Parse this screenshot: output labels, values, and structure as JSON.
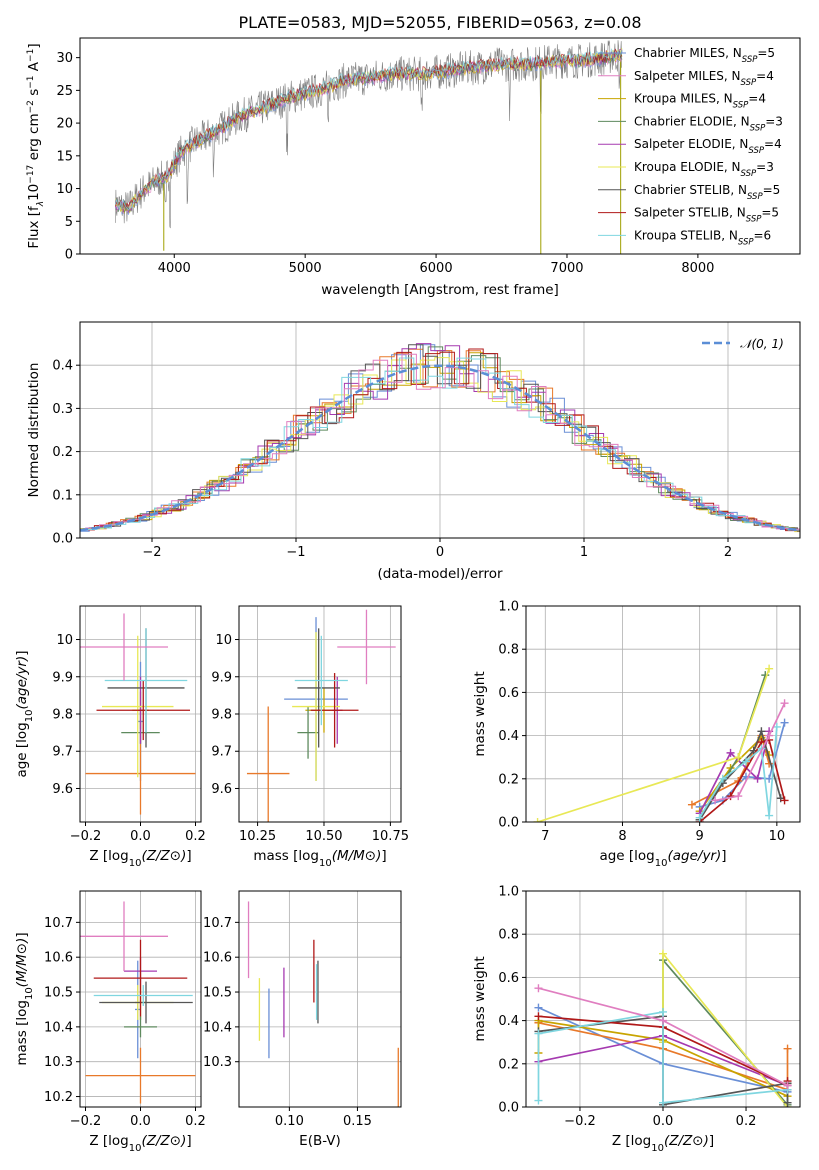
{
  "figure_title": "PLATE=0583, MJD=52055, FIBERID=0563, z=0.08",
  "colors": [
    "#6a8fd6",
    "#e8792a",
    "#c8a400",
    "#5e8a5e",
    "#a53ab0",
    "#e8e855",
    "#555555",
    "#b01818",
    "#7fd6e0",
    "#e07ec0"
  ],
  "chart_data": [
    {
      "id": "spectrum",
      "type": "line",
      "title": "PLATE=0583, MJD=52055, FIBERID=0563, z=0.08",
      "xlabel": "wavelength [Angstrom, rest frame]",
      "ylabel": "Flux [f_λ10^-17 erg cm^-2 s^-1 A^-1]",
      "xlim": [
        3280,
        8780
      ],
      "ylim": [
        0,
        33
      ],
      "xticks": [
        4000,
        5000,
        6000,
        7000,
        8000
      ],
      "yticks": [
        0,
        5,
        10,
        15,
        20,
        25,
        30
      ],
      "legend_position": "right",
      "continuum": {
        "x": [
          3550,
          3650,
          3750,
          3850,
          3950,
          4050,
          4150,
          4300,
          4500,
          4700,
          4900,
          5100,
          5300,
          5500,
          5700,
          5900,
          6100,
          6300,
          6500,
          6700,
          6900,
          7100,
          7300,
          7420
        ],
        "y": [
          7.5,
          7.0,
          9.5,
          11.0,
          12.0,
          15.5,
          17.0,
          18.5,
          21.0,
          22.5,
          24.0,
          25.0,
          26.5,
          27.0,
          27.5,
          27.5,
          28.0,
          28.5,
          29.0,
          29.0,
          29.5,
          29.5,
          30.0,
          30.5
        ]
      },
      "series": [
        {
          "name": "Chabrier MILES",
          "nssp": "5",
          "color": "#6a8fd6"
        },
        {
          "name": "Salpeter MILES",
          "nssp": "4",
          "color": "#e07ec0"
        },
        {
          "name": "Kroupa MILES",
          "nssp": "4",
          "color": "#c8a400"
        },
        {
          "name": "Chabrier ELODIE",
          "nssp": "3",
          "color": "#5e8a5e"
        },
        {
          "name": "Salpeter ELODIE",
          "nssp": "4",
          "color": "#a53ab0"
        },
        {
          "name": "Kroupa ELODIE",
          "nssp": "3",
          "color": "#e8e855"
        },
        {
          "name": "Chabrier STELIB",
          "nssp": "5",
          "color": "#555555"
        },
        {
          "name": "Salpeter STELIB",
          "nssp": "5",
          "color": "#b01818"
        },
        {
          "name": "Kroupa STELIB",
          "nssp": "6",
          "color": "#7fd6e0"
        }
      ]
    },
    {
      "id": "residuals",
      "type": "line",
      "xlabel": "(data-model)/error",
      "ylabel": "Normed distribution",
      "xlim": [
        -2.5,
        2.5
      ],
      "ylim": [
        0,
        0.5
      ],
      "xticks": [
        -2,
        -1,
        0,
        1,
        2
      ],
      "yticks": [
        0.0,
        0.1,
        0.2,
        0.3,
        0.4
      ],
      "ytick_labels": [
        "0.0",
        "0.1",
        "0.2",
        "0.3",
        "0.4"
      ],
      "legend_label": "𝒩(0, 1)",
      "legend_position": "top-right",
      "normal": {
        "mean": 0,
        "sigma": 1,
        "color": "#5b8ed6"
      }
    },
    {
      "id": "age-vs-Z",
      "type": "scatter",
      "xlabel": "Z [log10(Z/Z⊙)]",
      "ylabel": "age [log10(age/yr)]",
      "xlim": [
        -0.22,
        0.22
      ],
      "ylim": [
        9.51,
        10.09
      ],
      "xticks": [
        -0.2,
        0.0,
        0.2
      ],
      "xtick_labels": [
        "−0.2",
        "0.0",
        "0.2"
      ],
      "yticks": [
        9.6,
        9.7,
        9.8,
        9.9,
        10.0
      ],
      "points": [
        {
          "x": 0.0,
          "y": 9.78,
          "xerr": 0.01,
          "yerr": 0.16,
          "color": "#6a8fd6"
        },
        {
          "x": 0.0,
          "y": 9.64,
          "xerr": 0.2,
          "yerr": 0.11,
          "color": "#e8792a"
        },
        {
          "x": 0.0,
          "y": 9.81,
          "xerr": 0.03,
          "yerr": 0.05,
          "color": "#c8a400"
        },
        {
          "x": 0.0,
          "y": 9.75,
          "xerr": 0.07,
          "yerr": 0.03,
          "color": "#5e8a5e"
        },
        {
          "x": 0.0,
          "y": 9.81,
          "xerr": 0.01,
          "yerr": 0.09,
          "color": "#a53ab0"
        },
        {
          "x": -0.01,
          "y": 9.82,
          "xerr": 0.13,
          "yerr": 0.19,
          "color": "#e8e855"
        },
        {
          "x": 0.02,
          "y": 9.87,
          "xerr": 0.14,
          "yerr": 0.16,
          "color": "#555555"
        },
        {
          "x": 0.01,
          "y": 9.81,
          "xerr": 0.17,
          "yerr": 0.08,
          "color": "#b01818"
        },
        {
          "x": 0.02,
          "y": 9.89,
          "xerr": 0.15,
          "yerr": 0.14,
          "color": "#7fd6e0"
        },
        {
          "x": -0.06,
          "y": 9.98,
          "xerr": 0.16,
          "yerr": 0.09,
          "color": "#e07ec0"
        }
      ]
    },
    {
      "id": "age-vs-mass",
      "type": "scatter",
      "xlabel": "mass [log10(M/M⊙)]",
      "xlim": [
        10.18,
        10.79
      ],
      "ylim": [
        9.51,
        10.09
      ],
      "xticks": [
        10.25,
        10.5,
        10.75
      ],
      "xtick_labels": [
        "10.25",
        "10.50",
        "10.75"
      ],
      "yticks": [
        9.6,
        9.7,
        9.8,
        9.9,
        10.0
      ],
      "points": [
        {
          "x": 10.47,
          "y": 9.84,
          "xerr": 0.12,
          "yerr": 0.22,
          "color": "#6a8fd6"
        },
        {
          "x": 10.29,
          "y": 9.64,
          "xerr": 0.08,
          "yerr": 0.18,
          "color": "#e8792a"
        },
        {
          "x": 10.5,
          "y": 9.81,
          "xerr": 0.07,
          "yerr": 0.06,
          "color": "#c8a400"
        },
        {
          "x": 10.44,
          "y": 9.75,
          "xerr": 0.04,
          "yerr": 0.07,
          "color": "#5e8a5e"
        },
        {
          "x": 10.55,
          "y": 9.81,
          "xerr": 0.02,
          "yerr": 0.09,
          "color": "#a53ab0"
        },
        {
          "x": 10.47,
          "y": 9.82,
          "xerr": 0.09,
          "yerr": 0.2,
          "color": "#e8e855"
        },
        {
          "x": 10.48,
          "y": 9.87,
          "xerr": 0.08,
          "yerr": 0.16,
          "color": "#555555"
        },
        {
          "x": 10.54,
          "y": 9.81,
          "xerr": 0.09,
          "yerr": 0.1,
          "color": "#b01818"
        },
        {
          "x": 10.49,
          "y": 9.89,
          "xerr": 0.1,
          "yerr": 0.12,
          "color": "#7fd6e0"
        },
        {
          "x": 10.66,
          "y": 9.98,
          "xerr": 0.11,
          "yerr": 0.1,
          "color": "#e07ec0"
        }
      ]
    },
    {
      "id": "weight-vs-age",
      "type": "line",
      "xlabel": "age [log10(age/yr)]",
      "ylabel": "mass weight",
      "xlim": [
        6.75,
        10.3
      ],
      "ylim": [
        0,
        1
      ],
      "xticks": [
        7,
        8,
        9,
        10
      ],
      "yticks": [
        0.0,
        0.2,
        0.4,
        0.6,
        0.8,
        1.0
      ],
      "ytick_labels": [
        "0.0",
        "0.2",
        "0.4",
        "0.6",
        "0.8",
        "1.0"
      ],
      "series": [
        {
          "color": "#6a8fd6",
          "x": [
            9.0,
            9.3,
            9.6,
            9.9,
            10.1
          ],
          "y": [
            0.07,
            0.1,
            0.21,
            0.2,
            0.46
          ]
        },
        {
          "color": "#e8792a",
          "x": [
            8.9,
            9.5,
            9.8,
            9.9
          ],
          "y": [
            0.08,
            0.19,
            0.4,
            0.27
          ]
        },
        {
          "color": "#c8a400",
          "x": [
            9.0,
            9.4,
            9.8,
            9.9
          ],
          "y": [
            0.05,
            0.25,
            0.39,
            0.31
          ]
        },
        {
          "color": "#5e8a5e",
          "x": [
            9.0,
            9.5,
            9.85
          ],
          "y": [
            0.01,
            0.3,
            0.68
          ]
        },
        {
          "color": "#a53ab0",
          "x": [
            9.0,
            9.4,
            9.75,
            9.9
          ],
          "y": [
            0.04,
            0.32,
            0.2,
            0.42
          ]
        },
        {
          "color": "#e8e855",
          "x": [
            6.9,
            9.5,
            9.9
          ],
          "y": [
            0.0,
            0.3,
            0.71
          ]
        },
        {
          "color": "#555555",
          "x": [
            9.0,
            9.3,
            9.7,
            9.8,
            10.05
          ],
          "y": [
            0.01,
            0.18,
            0.33,
            0.42,
            0.11
          ]
        },
        {
          "color": "#b01818",
          "x": [
            9.0,
            9.4,
            9.8,
            9.9,
            10.1
          ],
          "y": [
            0.0,
            0.12,
            0.37,
            0.38,
            0.1
          ]
        },
        {
          "color": "#7fd6e0",
          "x": [
            9.0,
            9.3,
            9.6,
            9.8,
            9.9,
            10.0
          ],
          "y": [
            0.02,
            0.2,
            0.28,
            0.34,
            0.03,
            0.44
          ]
        },
        {
          "color": "#e07ec0",
          "x": [
            9.2,
            9.5,
            9.9,
            10.1
          ],
          "y": [
            0.1,
            0.12,
            0.4,
            0.55
          ]
        }
      ]
    },
    {
      "id": "mass-vs-Z",
      "type": "scatter",
      "xlabel": "Z [log10(Z/Z⊙)]",
      "ylabel": "mass [log10(M/M⊙)]",
      "xlim": [
        -0.22,
        0.22
      ],
      "ylim": [
        10.17,
        10.79
      ],
      "xticks": [
        -0.2,
        0.0,
        0.2
      ],
      "xtick_labels": [
        "−0.2",
        "0.0",
        "0.2"
      ],
      "yticks": [
        10.2,
        10.3,
        10.4,
        10.5,
        10.6,
        10.7
      ],
      "points": [
        {
          "x": -0.01,
          "y": 10.45,
          "xerr": 0.01,
          "yerr": 0.14,
          "color": "#6a8fd6"
        },
        {
          "x": 0.0,
          "y": 10.26,
          "xerr": 0.2,
          "yerr": 0.08,
          "color": "#e8792a"
        },
        {
          "x": 0.0,
          "y": 10.47,
          "xerr": 0.02,
          "yerr": 0.05,
          "color": "#c8a400"
        },
        {
          "x": 0.0,
          "y": 10.4,
          "xerr": 0.06,
          "yerr": 0.03,
          "color": "#5e8a5e"
        },
        {
          "x": 0.0,
          "y": 10.56,
          "xerr": 0.06,
          "yerr": 0.04,
          "color": "#a53ab0"
        },
        {
          "x": -0.01,
          "y": 10.47,
          "xerr": 0.13,
          "yerr": 0.05,
          "color": "#e8e855"
        },
        {
          "x": 0.02,
          "y": 10.47,
          "xerr": 0.17,
          "yerr": 0.06,
          "color": "#555555"
        },
        {
          "x": 0.0,
          "y": 10.54,
          "xerr": 0.17,
          "yerr": 0.11,
          "color": "#b01818"
        },
        {
          "x": 0.01,
          "y": 10.49,
          "xerr": 0.18,
          "yerr": 0.03,
          "color": "#7fd6e0"
        },
        {
          "x": -0.06,
          "y": 10.66,
          "xerr": 0.16,
          "yerr": 0.1,
          "color": "#e07ec0"
        }
      ]
    },
    {
      "id": "mass-vs-EBV",
      "type": "scatter",
      "xlabel": "E(B-V)",
      "xlim": [
        0.063,
        0.182
      ],
      "ylim": [
        10.17,
        10.79
      ],
      "xticks": [
        0.1,
        0.15
      ],
      "xtick_labels": [
        "0.10",
        "0.15"
      ],
      "yticks": [
        10.3,
        10.4,
        10.5,
        10.6,
        10.7
      ],
      "points": [
        {
          "x": 0.085,
          "y": 10.41,
          "yerr": 0.1,
          "color": "#6a8fd6"
        },
        {
          "x": 0.18,
          "y": 10.22,
          "yerr": 0.12,
          "color": "#e8792a"
        },
        {
          "x": 0.096,
          "y": 10.47,
          "yerr": 0.1,
          "color": "#a53ab0"
        },
        {
          "x": 0.078,
          "y": 10.45,
          "yerr": 0.09,
          "color": "#e8e855"
        },
        {
          "x": 0.121,
          "y": 10.5,
          "yerr": 0.09,
          "color": "#555555"
        },
        {
          "x": 0.118,
          "y": 10.56,
          "yerr": 0.09,
          "color": "#b01818"
        },
        {
          "x": 0.12,
          "y": 10.5,
          "yerr": 0.08,
          "color": "#7fd6e0"
        },
        {
          "x": 0.07,
          "y": 10.65,
          "yerr": 0.11,
          "color": "#e07ec0"
        }
      ]
    },
    {
      "id": "weight-vs-Z",
      "type": "line",
      "xlabel": "Z [log10(Z/Z⊙)]",
      "ylabel": "mass weight",
      "xlim": [
        -0.33,
        0.33
      ],
      "ylim": [
        0,
        1
      ],
      "xticks": [
        -0.2,
        0.0,
        0.2
      ],
      "xtick_labels": [
        "−0.2",
        "0.0",
        "0.2"
      ],
      "yticks": [
        0.0,
        0.2,
        0.4,
        0.6,
        0.8,
        1.0
      ],
      "ytick_labels": [
        "0.0",
        "0.2",
        "0.4",
        "0.6",
        "0.8",
        "1.0"
      ],
      "series": [
        {
          "color": "#6a8fd6",
          "x": [
            -0.3,
            0.0,
            0.3
          ],
          "y": [
            0.46,
            0.2,
            0.07
          ]
        },
        {
          "color": "#e8792a",
          "x": [
            -0.3,
            0.0,
            0.3,
            0.3
          ],
          "y": [
            0.39,
            0.27,
            0.08,
            0.27
          ]
        },
        {
          "color": "#c8a400",
          "x": [
            -0.3,
            -0.3,
            0.0,
            0.3
          ],
          "y": [
            0.25,
            0.4,
            0.31,
            0.05
          ]
        },
        {
          "color": "#5e8a5e",
          "x": [
            0.0,
            0.0,
            0.3
          ],
          "y": [
            0.3,
            0.68,
            0.01
          ]
        },
        {
          "color": "#a53ab0",
          "x": [
            -0.3,
            0.0,
            0.3
          ],
          "y": [
            0.21,
            0.33,
            0.1
          ]
        },
        {
          "color": "#e8e855",
          "x": [
            0.0,
            0.0,
            0.3
          ],
          "y": [
            0.3,
            0.71,
            0.0
          ]
        },
        {
          "color": "#555555",
          "x": [
            -0.3,
            0.0,
            0.0,
            0.3,
            0.3
          ],
          "y": [
            0.35,
            0.42,
            0.01,
            0.11,
            0.02
          ]
        },
        {
          "color": "#b01818",
          "x": [
            -0.3,
            0.0,
            0.3,
            0.3
          ],
          "y": [
            0.42,
            0.37,
            0.1,
            0.12
          ]
        },
        {
          "color": "#7fd6e0",
          "x": [
            -0.3,
            -0.3,
            0.0,
            0.0,
            0.3
          ],
          "y": [
            0.03,
            0.34,
            0.44,
            0.02,
            0.08
          ]
        },
        {
          "color": "#e07ec0",
          "x": [
            -0.3,
            0.0,
            0.3
          ],
          "y": [
            0.55,
            0.4,
            0.1
          ]
        }
      ]
    }
  ]
}
